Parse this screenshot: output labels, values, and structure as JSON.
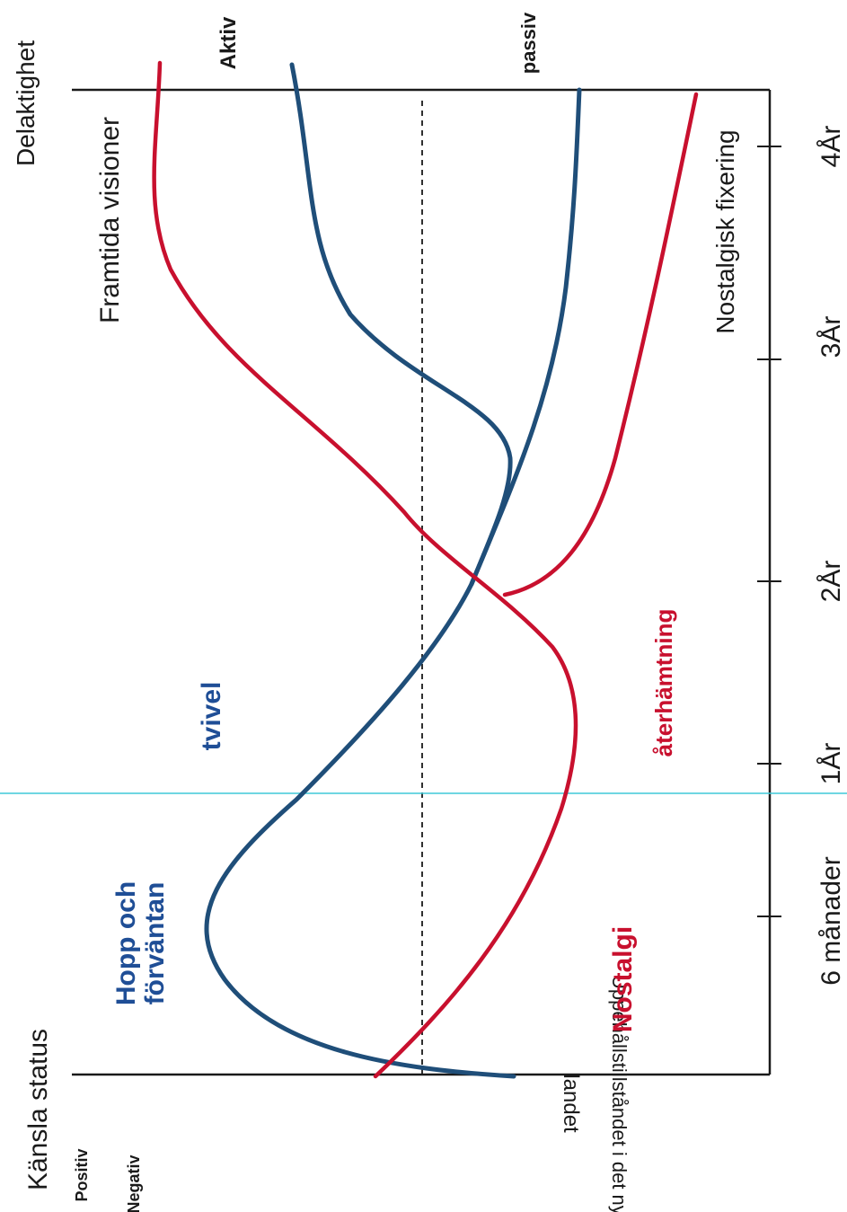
{
  "colors": {
    "blue": "#1f4e79",
    "blue_label": "#1f4e96",
    "red": "#c8102e",
    "axis": "#1a1a1a",
    "marker_line": "#3fc9d8"
  },
  "axis": {
    "y_label": "Känsla status",
    "y_top": "Positiv",
    "y_bottom": "Negativ",
    "right_label": "Delaktighet",
    "right_top": "Aktiv",
    "right_bottom": "passiv",
    "landed": "landet",
    "baseline_label": "Uppehållstillståndet i det nya"
  },
  "ticks": [
    "6 månader",
    "1År",
    "2År",
    "3År",
    "4År"
  ],
  "labels": {
    "hopp_line1": "Hopp och",
    "hopp_line2": "förväntan",
    "tvivel": "tvivel",
    "nostalgi": "Nostalgi",
    "aterhamtning": "återhämtning",
    "framtida": "Framtida visioner",
    "nostalgisk": "Nostalgisk fixering"
  }
}
